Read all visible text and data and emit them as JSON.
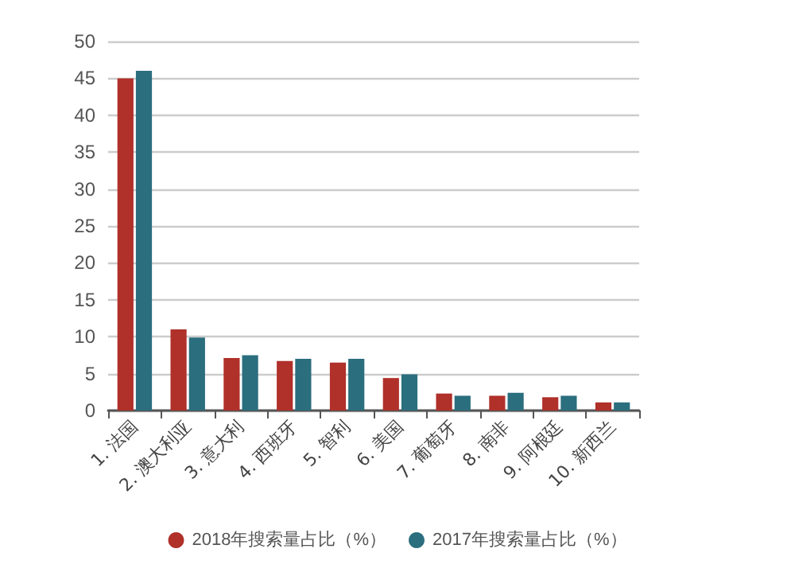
{
  "chart_data": {
    "type": "bar",
    "categories": [
      "1. 法国",
      "2. 澳大利亚",
      "3. 意大利",
      "4. 西班牙",
      "5. 智利",
      "6. 美国",
      "7. 葡萄牙",
      "8. 南非",
      "9. 阿根廷",
      "10. 新西兰"
    ],
    "series": [
      {
        "name": "2018年搜索量占比（%）",
        "color": "#b0302a",
        "values": [
          45,
          11,
          7.1,
          6.7,
          6.5,
          4.4,
          2.3,
          2.0,
          1.8,
          1.1
        ]
      },
      {
        "name": "2017年搜索量占比（%）",
        "color": "#2b6e7e",
        "values": [
          46,
          9.9,
          7.5,
          7.0,
          7.0,
          4.9,
          2.0,
          2.4,
          2.0,
          1.1
        ]
      }
    ],
    "ylim": [
      0,
      50
    ],
    "yticks": [
      0,
      5,
      10,
      15,
      20,
      25,
      30,
      35,
      40,
      45,
      50
    ],
    "grid": "y",
    "legend": "bottom"
  }
}
